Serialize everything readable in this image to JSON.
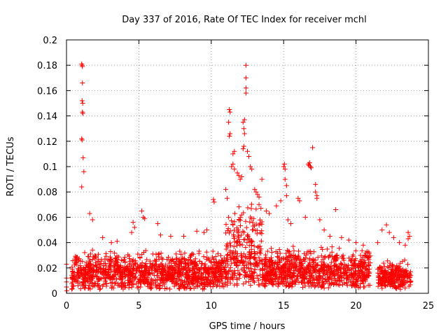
{
  "chart_data": {
    "type": "scatter",
    "title": "Day 337 of 2016, Rate Of TEC Index for receiver mchl",
    "xlabel": "GPS time / hours",
    "ylabel": "ROTI / TECUs",
    "xlim": [
      0,
      25
    ],
    "ylim": [
      0,
      0.2
    ],
    "x_ticks": [
      0,
      5,
      10,
      15,
      20,
      25
    ],
    "y_ticks": [
      0,
      0.02,
      0.04,
      0.06,
      0.08,
      0.1,
      0.12,
      0.14,
      0.16,
      0.18,
      0.2
    ],
    "x_tick_labels": [
      "0",
      "5",
      "10",
      "15",
      "20",
      "25"
    ],
    "y_tick_labels": [
      "0",
      "0.02",
      "0.04",
      "0.06",
      "0.08",
      "0.1",
      "0.12",
      "0.14",
      "0.16",
      "0.18",
      "0.2"
    ],
    "grid": true,
    "marker": "+",
    "color": "#ff0000",
    "series": [
      {
        "name": "ROTI",
        "points": [
          [
            0.0,
            0.023
          ],
          [
            0.0,
            0.012
          ],
          [
            0.0,
            0.009
          ],
          [
            0.0,
            0.005
          ],
          [
            0.02,
            0.002
          ],
          [
            1.05,
            0.181
          ],
          [
            1.08,
            0.18
          ],
          [
            1.1,
            0.179
          ],
          [
            1.1,
            0.166
          ],
          [
            1.08,
            0.152
          ],
          [
            1.12,
            0.15
          ],
          [
            1.1,
            0.143
          ],
          [
            1.13,
            0.142
          ],
          [
            1.05,
            0.122
          ],
          [
            1.08,
            0.121
          ],
          [
            1.15,
            0.107
          ],
          [
            1.2,
            0.096
          ],
          [
            1.05,
            0.084
          ],
          [
            1.6,
            0.063
          ],
          [
            1.8,
            0.058
          ],
          [
            2.5,
            0.044
          ],
          [
            3.1,
            0.04
          ],
          [
            3.5,
            0.041
          ],
          [
            4.5,
            0.048
          ],
          [
            4.6,
            0.056
          ],
          [
            4.7,
            0.052
          ],
          [
            5.2,
            0.065
          ],
          [
            5.3,
            0.06
          ],
          [
            5.4,
            0.059
          ],
          [
            6.3,
            0.055
          ],
          [
            6.5,
            0.046
          ],
          [
            7.2,
            0.045
          ],
          [
            8.1,
            0.045
          ],
          [
            9.0,
            0.049
          ],
          [
            9.5,
            0.048
          ],
          [
            9.7,
            0.05
          ],
          [
            10.15,
            0.074
          ],
          [
            10.2,
            0.072
          ],
          [
            11.0,
            0.082
          ],
          [
            11.2,
            0.06
          ],
          [
            11.1,
            0.075
          ],
          [
            11.25,
            0.145
          ],
          [
            11.3,
            0.143
          ],
          [
            11.2,
            0.135
          ],
          [
            11.3,
            0.126
          ],
          [
            11.25,
            0.124
          ],
          [
            11.5,
            0.11
          ],
          [
            11.6,
            0.112
          ],
          [
            11.4,
            0.1
          ],
          [
            11.5,
            0.102
          ],
          [
            11.6,
            0.098
          ],
          [
            11.8,
            0.095
          ],
          [
            11.9,
            0.093
          ],
          [
            12.0,
            0.09
          ],
          [
            12.1,
            0.092
          ],
          [
            12.2,
            0.114
          ],
          [
            12.25,
            0.116
          ],
          [
            12.2,
            0.135
          ],
          [
            12.3,
            0.137
          ],
          [
            12.25,
            0.13
          ],
          [
            12.3,
            0.126
          ],
          [
            12.4,
            0.18
          ],
          [
            12.4,
            0.17
          ],
          [
            12.4,
            0.162
          ],
          [
            12.4,
            0.158
          ],
          [
            12.5,
            0.112
          ],
          [
            12.6,
            0.108
          ],
          [
            12.7,
            0.1
          ],
          [
            12.8,
            0.098
          ],
          [
            13.0,
            0.082
          ],
          [
            13.1,
            0.08
          ],
          [
            13.2,
            0.078
          ],
          [
            13.3,
            0.076
          ],
          [
            13.5,
            0.09
          ],
          [
            13.3,
            0.07
          ],
          [
            13.8,
            0.065
          ],
          [
            14.0,
            0.063
          ],
          [
            14.5,
            0.069
          ],
          [
            14.8,
            0.073
          ],
          [
            15.0,
            0.1
          ],
          [
            15.05,
            0.102
          ],
          [
            15.1,
            0.098
          ],
          [
            15.1,
            0.09
          ],
          [
            15.2,
            0.085
          ],
          [
            15.2,
            0.077
          ],
          [
            15.3,
            0.058
          ],
          [
            15.5,
            0.055
          ],
          [
            16.0,
            0.075
          ],
          [
            16.1,
            0.073
          ],
          [
            16.5,
            0.06
          ],
          [
            16.7,
            0.102
          ],
          [
            16.75,
            0.101
          ],
          [
            16.8,
            0.103
          ],
          [
            16.85,
            0.1
          ],
          [
            16.9,
            0.099
          ],
          [
            17.0,
            0.115
          ],
          [
            17.2,
            0.086
          ],
          [
            17.2,
            0.08
          ],
          [
            17.3,
            0.077
          ],
          [
            17.3,
            0.075
          ],
          [
            17.5,
            0.058
          ],
          [
            17.8,
            0.05
          ],
          [
            18.2,
            0.045
          ],
          [
            18.6,
            0.066
          ],
          [
            19.0,
            0.044
          ],
          [
            19.5,
            0.042
          ],
          [
            20.0,
            0.04
          ],
          [
            20.5,
            0.038
          ],
          [
            21.5,
            0.04
          ],
          [
            21.8,
            0.05
          ],
          [
            22.1,
            0.054
          ],
          [
            22.3,
            0.048
          ],
          [
            22.6,
            0.044
          ],
          [
            23.0,
            0.04
          ],
          [
            23.4,
            0.038
          ],
          [
            23.6,
            0.043
          ],
          [
            23.6,
            0.048
          ],
          [
            23.7,
            0.045
          ]
        ],
        "dense_segments": [
          {
            "x_from": 0.35,
            "x_to": 11.0,
            "y_from": 0.003,
            "y_to": 0.02,
            "y_spread": 0.015
          },
          {
            "x_from": 11.0,
            "x_to": 13.5,
            "y_from": 0.005,
            "y_to": 0.03,
            "y_spread": 0.045
          },
          {
            "x_from": 13.5,
            "x_to": 21.0,
            "y_from": 0.004,
            "y_to": 0.02,
            "y_spread": 0.018
          },
          {
            "x_from": 21.5,
            "x_to": 23.8,
            "y_from": 0.003,
            "y_to": 0.015,
            "y_spread": 0.012
          }
        ]
      }
    ]
  }
}
